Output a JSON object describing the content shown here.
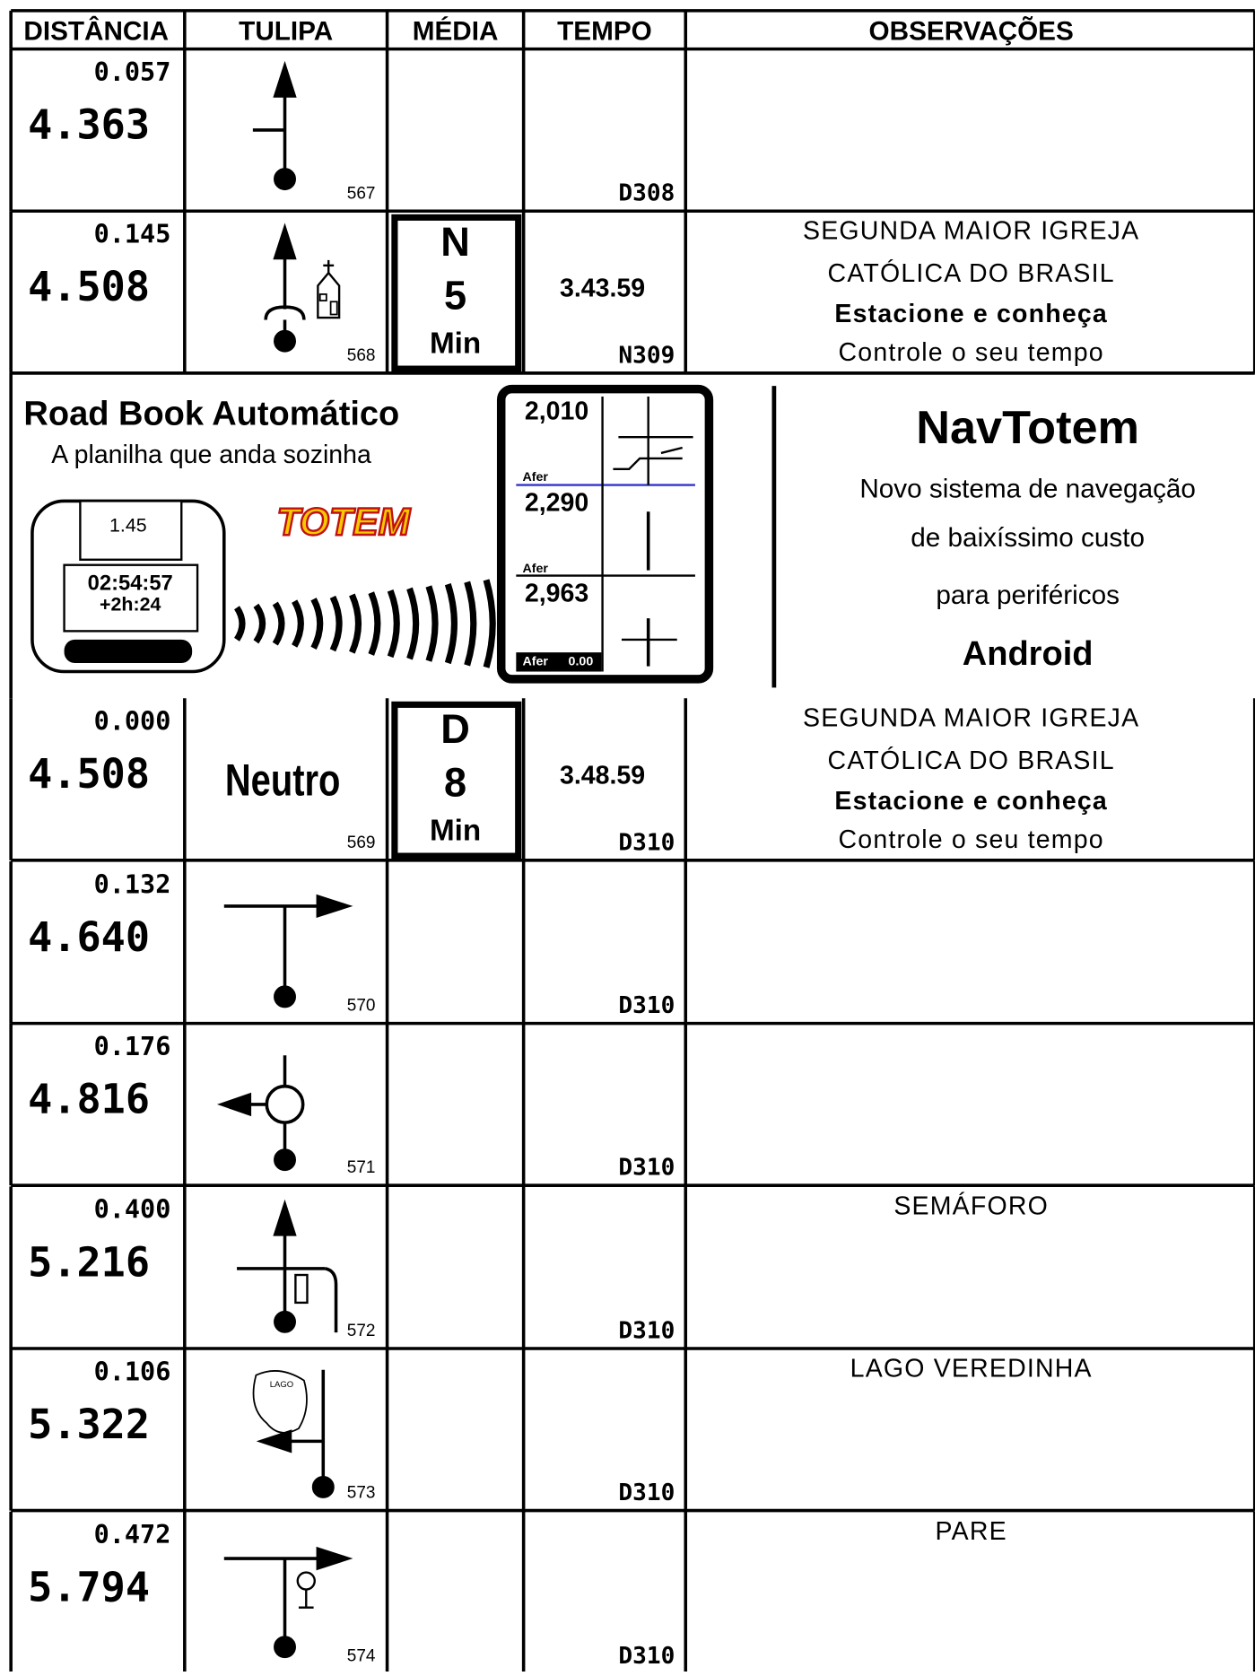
{
  "header": {
    "columns": [
      "DISTÂNCIA",
      "TULIPA",
      "MÉDIA",
      "TEMPO",
      "OBSERVAÇÕES"
    ]
  },
  "rows": [
    {
      "partial": "0.057",
      "total": "4.363",
      "tulip_number": "567",
      "road": "D308"
    },
    {
      "partial": "0.145",
      "total": "4.508",
      "tulip_number": "568",
      "media": [
        "N",
        "5",
        "Min"
      ],
      "tempo": "3.43.59",
      "road": "N309",
      "notes": [
        "SEGUNDA MAIOR IGREJA",
        "CATÓLICA DO BRASIL",
        "Estacione e conheça",
        "Controle o seu tempo"
      ]
    },
    {
      "partial": "0.000",
      "total": "4.508",
      "tulip_text": "Neutro",
      "tulip_number": "569",
      "media": [
        "D",
        "8",
        "Min"
      ],
      "tempo": "3.48.59",
      "road": "D310",
      "notes": [
        "SEGUNDA MAIOR IGREJA",
        "CATÓLICA DO BRASIL",
        "Estacione e conheça",
        "Controle o seu tempo"
      ]
    },
    {
      "partial": "0.132",
      "total": "4.640",
      "tulip_number": "570",
      "road": "D310"
    },
    {
      "partial": "0.176",
      "total": "4.816",
      "tulip_number": "571",
      "road": "D310"
    },
    {
      "partial": "0.400",
      "total": "5.216",
      "tulip_number": "572",
      "road": "D310",
      "notes": [
        "SEMÁFORO"
      ]
    },
    {
      "partial": "0.106",
      "total": "5.322",
      "tulip_text": "LAGO",
      "tulip_number": "573",
      "road": "D310",
      "notes": [
        "LAGO VEREDINHA"
      ]
    },
    {
      "partial": "0.472",
      "total": "5.794",
      "tulip_number": "574",
      "road": "D310",
      "notes": [
        "PARE"
      ]
    }
  ],
  "ad": {
    "title": "Road Book Automático",
    "subtitle": "A planilha que anda sozinha",
    "brand": "TOTEM",
    "device": [
      "1.45",
      "02:54:57",
      "+2h:24"
    ],
    "screen": [
      {
        "distance": "2,010",
        "label": "Afer"
      },
      {
        "distance": "2,290",
        "label": "Afer"
      },
      {
        "distance": "2,963",
        "label": "Afer",
        "value": "0.00"
      }
    ],
    "product": "NavTotem",
    "lines": [
      "Novo sistema de navegação",
      "de baixíssimo custo",
      "para periféricos"
    ],
    "platform": "Android"
  }
}
